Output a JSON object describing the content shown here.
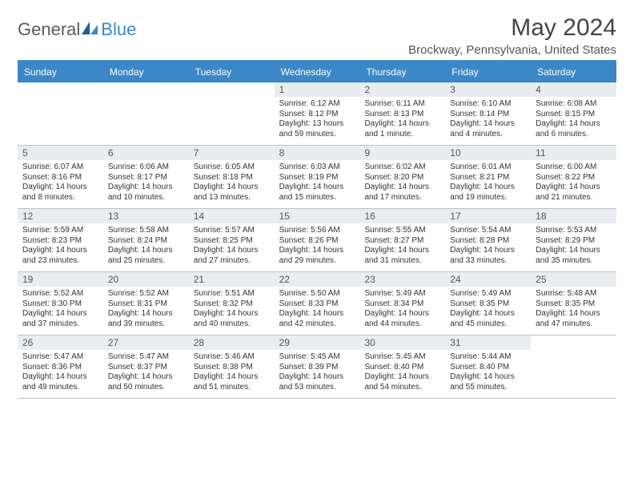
{
  "brand": {
    "part1": "General",
    "part2": "Blue"
  },
  "title": "May 2024",
  "location": "Brockway, Pennsylvania, United States",
  "theme": {
    "accent": "#3b87c8",
    "header_text": "#ffffff",
    "daynum_bg": "#e9edf0",
    "border": "#b9c4cd",
    "text": "#333333"
  },
  "weekdays": [
    "Sunday",
    "Monday",
    "Tuesday",
    "Wednesday",
    "Thursday",
    "Friday",
    "Saturday"
  ],
  "weeks": [
    [
      {
        "blank": true
      },
      {
        "blank": true
      },
      {
        "blank": true
      },
      {
        "day": "1",
        "sunrise": "6:12 AM",
        "sunset": "8:12 PM",
        "daylight": "13 hours and 59 minutes."
      },
      {
        "day": "2",
        "sunrise": "6:11 AM",
        "sunset": "8:13 PM",
        "daylight": "14 hours and 1 minute."
      },
      {
        "day": "3",
        "sunrise": "6:10 AM",
        "sunset": "8:14 PM",
        "daylight": "14 hours and 4 minutes."
      },
      {
        "day": "4",
        "sunrise": "6:08 AM",
        "sunset": "8:15 PM",
        "daylight": "14 hours and 6 minutes."
      }
    ],
    [
      {
        "day": "5",
        "sunrise": "6:07 AM",
        "sunset": "8:16 PM",
        "daylight": "14 hours and 8 minutes."
      },
      {
        "day": "6",
        "sunrise": "6:06 AM",
        "sunset": "8:17 PM",
        "daylight": "14 hours and 10 minutes."
      },
      {
        "day": "7",
        "sunrise": "6:05 AM",
        "sunset": "8:18 PM",
        "daylight": "14 hours and 13 minutes."
      },
      {
        "day": "8",
        "sunrise": "6:03 AM",
        "sunset": "8:19 PM",
        "daylight": "14 hours and 15 minutes."
      },
      {
        "day": "9",
        "sunrise": "6:02 AM",
        "sunset": "8:20 PM",
        "daylight": "14 hours and 17 minutes."
      },
      {
        "day": "10",
        "sunrise": "6:01 AM",
        "sunset": "8:21 PM",
        "daylight": "14 hours and 19 minutes."
      },
      {
        "day": "11",
        "sunrise": "6:00 AM",
        "sunset": "8:22 PM",
        "daylight": "14 hours and 21 minutes."
      }
    ],
    [
      {
        "day": "12",
        "sunrise": "5:59 AM",
        "sunset": "8:23 PM",
        "daylight": "14 hours and 23 minutes."
      },
      {
        "day": "13",
        "sunrise": "5:58 AM",
        "sunset": "8:24 PM",
        "daylight": "14 hours and 25 minutes."
      },
      {
        "day": "14",
        "sunrise": "5:57 AM",
        "sunset": "8:25 PM",
        "daylight": "14 hours and 27 minutes."
      },
      {
        "day": "15",
        "sunrise": "5:56 AM",
        "sunset": "8:26 PM",
        "daylight": "14 hours and 29 minutes."
      },
      {
        "day": "16",
        "sunrise": "5:55 AM",
        "sunset": "8:27 PM",
        "daylight": "14 hours and 31 minutes."
      },
      {
        "day": "17",
        "sunrise": "5:54 AM",
        "sunset": "8:28 PM",
        "daylight": "14 hours and 33 minutes."
      },
      {
        "day": "18",
        "sunrise": "5:53 AM",
        "sunset": "8:29 PM",
        "daylight": "14 hours and 35 minutes."
      }
    ],
    [
      {
        "day": "19",
        "sunrise": "5:52 AM",
        "sunset": "8:30 PM",
        "daylight": "14 hours and 37 minutes."
      },
      {
        "day": "20",
        "sunrise": "5:52 AM",
        "sunset": "8:31 PM",
        "daylight": "14 hours and 39 minutes."
      },
      {
        "day": "21",
        "sunrise": "5:51 AM",
        "sunset": "8:32 PM",
        "daylight": "14 hours and 40 minutes."
      },
      {
        "day": "22",
        "sunrise": "5:50 AM",
        "sunset": "8:33 PM",
        "daylight": "14 hours and 42 minutes."
      },
      {
        "day": "23",
        "sunrise": "5:49 AM",
        "sunset": "8:34 PM",
        "daylight": "14 hours and 44 minutes."
      },
      {
        "day": "24",
        "sunrise": "5:49 AM",
        "sunset": "8:35 PM",
        "daylight": "14 hours and 45 minutes."
      },
      {
        "day": "25",
        "sunrise": "5:48 AM",
        "sunset": "8:35 PM",
        "daylight": "14 hours and 47 minutes."
      }
    ],
    [
      {
        "day": "26",
        "sunrise": "5:47 AM",
        "sunset": "8:36 PM",
        "daylight": "14 hours and 49 minutes."
      },
      {
        "day": "27",
        "sunrise": "5:47 AM",
        "sunset": "8:37 PM",
        "daylight": "14 hours and 50 minutes."
      },
      {
        "day": "28",
        "sunrise": "5:46 AM",
        "sunset": "8:38 PM",
        "daylight": "14 hours and 51 minutes."
      },
      {
        "day": "29",
        "sunrise": "5:45 AM",
        "sunset": "8:39 PM",
        "daylight": "14 hours and 53 minutes."
      },
      {
        "day": "30",
        "sunrise": "5:45 AM",
        "sunset": "8:40 PM",
        "daylight": "14 hours and 54 minutes."
      },
      {
        "day": "31",
        "sunrise": "5:44 AM",
        "sunset": "8:40 PM",
        "daylight": "14 hours and 55 minutes."
      },
      {
        "blank": true
      }
    ]
  ],
  "labels": {
    "sunrise": "Sunrise: ",
    "sunset": "Sunset: ",
    "daylight": "Daylight: "
  }
}
